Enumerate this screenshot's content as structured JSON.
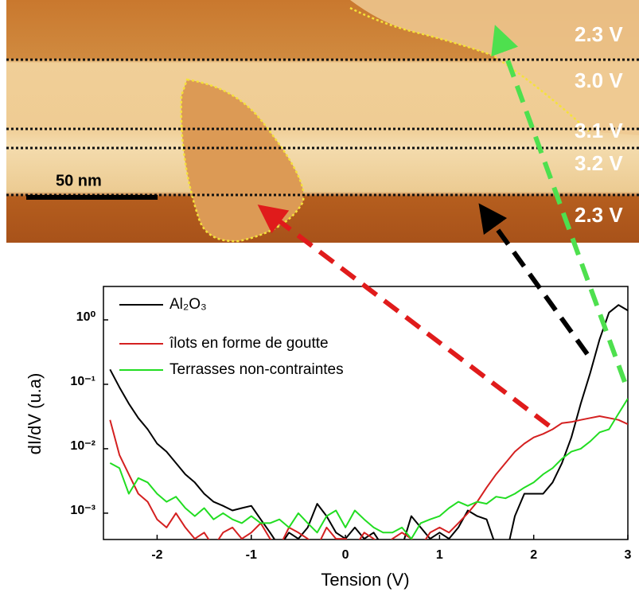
{
  "image": {
    "labels": [
      "2.3 V",
      "3.0 V",
      "3.1 V",
      "3.2 V",
      "2.3 V"
    ],
    "scale_bar": "50 nm"
  },
  "chart_data": {
    "type": "line",
    "x_label": "Tension (V)",
    "y_label": "dI/dV (u.a)",
    "log_y": true,
    "legend": "upper left",
    "x": [
      -2.5,
      -2.4,
      -2.3,
      -2.2,
      -2.1,
      -2.0,
      -1.9,
      -1.8,
      -1.7,
      -1.6,
      -1.5,
      -1.4,
      -1.3,
      -1.2,
      -1.1,
      -1.0,
      -0.9,
      -0.8,
      -0.7,
      -0.6,
      -0.5,
      -0.4,
      -0.3,
      -0.2,
      -0.1,
      0,
      0.1,
      0.2,
      0.3,
      0.4,
      0.5,
      0.6,
      0.7,
      0.8,
      0.9,
      1.0,
      1.1,
      1.2,
      1.3,
      1.4,
      1.5,
      1.6,
      1.7,
      1.8,
      1.9,
      2.0,
      2.1,
      2.2,
      2.3,
      2.4,
      2.5,
      2.6,
      2.7,
      2.8,
      2.9,
      3.0
    ],
    "series": [
      {
        "name": "Al₂O₃",
        "color": "#000000",
        "values": [
          0.17,
          0.09,
          0.05,
          0.03,
          0.02,
          0.012,
          0.009,
          0.006,
          0.004,
          0.003,
          0.002,
          0.0015,
          0.0013,
          0.0011,
          0.0012,
          0.0013,
          0.0008,
          0.0005,
          0.0003,
          0.0005,
          0.0004,
          0.0006,
          0.0014,
          0.0009,
          0.0005,
          0.0004,
          0.0006,
          0.0004,
          0.0005,
          0.0003,
          0.0004,
          0.0003,
          0.0009,
          0.0006,
          0.0004,
          0.0005,
          0.0004,
          0.0006,
          0.0011,
          0.0009,
          0.0008,
          0.0003,
          0.0002,
          0.0009,
          0.002,
          0.002,
          0.002,
          0.003,
          0.006,
          0.015,
          0.05,
          0.15,
          0.5,
          1.3,
          1.7,
          1.4
        ]
      },
      {
        "name": "îlots en forme de goutte",
        "color": "#d42020",
        "values": [
          0.028,
          0.008,
          0.004,
          0.002,
          0.0015,
          0.0008,
          0.0006,
          0.001,
          0.0006,
          0.0004,
          0.0005,
          0.0003,
          0.0005,
          0.0006,
          0.0004,
          0.0005,
          0.0007,
          0.0004,
          0.0003,
          0.0006,
          0.0005,
          0.0004,
          0.0003,
          0.0006,
          0.0004,
          0.0004,
          0.0003,
          0.0005,
          0.0004,
          0.0003,
          0.0004,
          0.0005,
          0.0004,
          0.0003,
          0.0005,
          0.0006,
          0.0005,
          0.0007,
          0.001,
          0.0015,
          0.0025,
          0.004,
          0.006,
          0.009,
          0.012,
          0.015,
          0.017,
          0.02,
          0.025,
          0.026,
          0.028,
          0.03,
          0.032,
          0.03,
          0.028,
          0.024
        ]
      },
      {
        "name": "Terrasses non-contraintes",
        "color": "#22dd22",
        "values": [
          0.006,
          0.005,
          0.002,
          0.0035,
          0.003,
          0.002,
          0.0015,
          0.0018,
          0.0012,
          0.0009,
          0.0012,
          0.0008,
          0.001,
          0.0008,
          0.0007,
          0.0009,
          0.0007,
          0.0007,
          0.0008,
          0.0006,
          0.001,
          0.0007,
          0.0005,
          0.0009,
          0.0011,
          0.0006,
          0.0011,
          0.0008,
          0.0006,
          0.0005,
          0.0005,
          0.0006,
          0.0004,
          0.0007,
          0.0008,
          0.0009,
          0.0012,
          0.0015,
          0.0013,
          0.0015,
          0.0014,
          0.0018,
          0.0017,
          0.002,
          0.0025,
          0.003,
          0.004,
          0.005,
          0.007,
          0.009,
          0.01,
          0.013,
          0.018,
          0.02,
          0.035,
          0.06
        ]
      }
    ],
    "xlim": [
      -2.57,
      3
    ],
    "xticks": [
      -2,
      -1,
      0,
      1,
      2,
      3
    ],
    "ylim": [
      0.00039,
      3.3
    ],
    "yticks": [
      {
        "value": 0.001,
        "label": "10⁻³"
      },
      {
        "value": 0.01,
        "label": "10⁻²"
      },
      {
        "value": 0.1,
        "label": "10⁻¹"
      },
      {
        "value": 1,
        "label": "10⁰"
      }
    ]
  }
}
